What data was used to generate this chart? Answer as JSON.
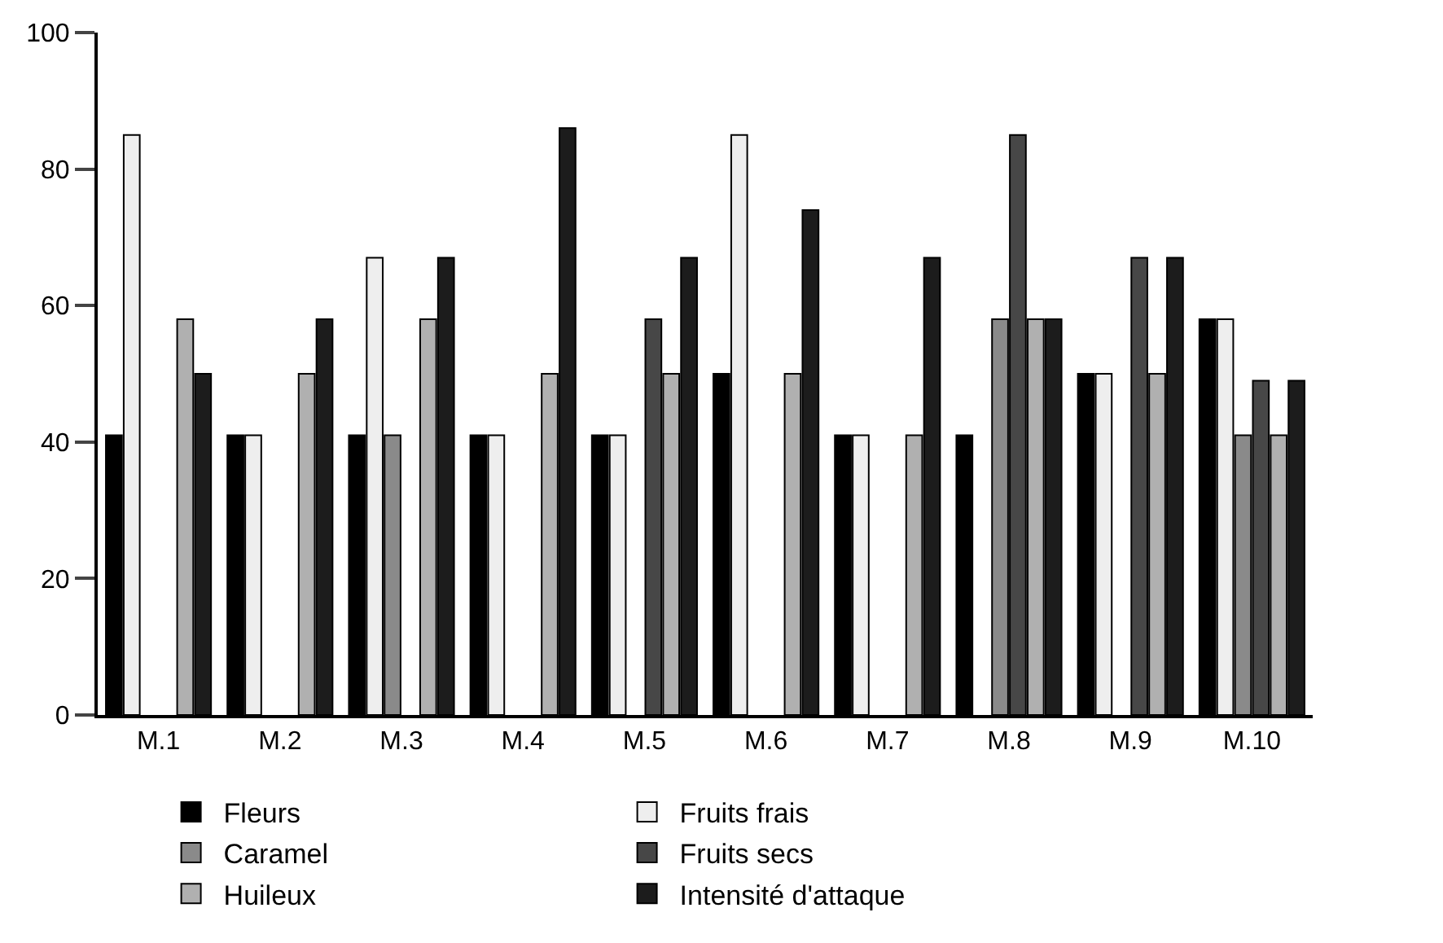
{
  "chart_data": {
    "type": "bar",
    "categories": [
      "M.1",
      "M.2",
      "M.3",
      "M.4",
      "M.5",
      "M.6",
      "M.7",
      "M.8",
      "M.9",
      "M.10"
    ],
    "series": [
      {
        "name": "Fleurs",
        "color": "#000000",
        "values": [
          41,
          41,
          41,
          41,
          41,
          50,
          41,
          41,
          50,
          58
        ]
      },
      {
        "name": "Fruits frais",
        "color": "#eeeeee",
        "values": [
          85,
          41,
          67,
          41,
          41,
          85,
          41,
          null,
          50,
          58
        ]
      },
      {
        "name": "Caramel",
        "color": "#8a8a8a",
        "values": [
          null,
          null,
          41,
          null,
          null,
          null,
          null,
          58,
          null,
          41
        ]
      },
      {
        "name": "Fruits secs",
        "color": "#474747",
        "values": [
          null,
          null,
          null,
          null,
          58,
          null,
          null,
          85,
          67,
          49
        ]
      },
      {
        "name": "Huileux",
        "color": "#b0b0b0",
        "values": [
          58,
          50,
          58,
          50,
          50,
          50,
          41,
          58,
          50,
          41
        ]
      },
      {
        "name": "Intensité d'attaque",
        "color": "#1c1c1c",
        "values": [
          50,
          58,
          67,
          86,
          67,
          74,
          67,
          58,
          67,
          49
        ]
      }
    ],
    "ylim": [
      0,
      100
    ],
    "yticks": [
      0,
      20,
      40,
      60,
      80,
      100
    ],
    "legend": "bottom"
  }
}
